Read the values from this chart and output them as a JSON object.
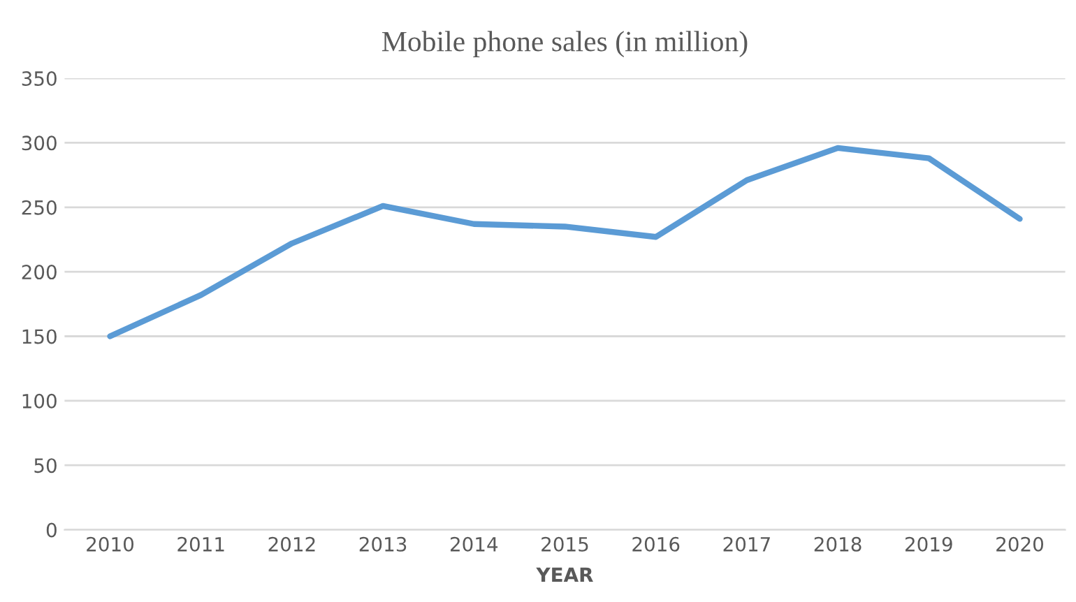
{
  "chart_data": {
    "type": "line",
    "title": "Mobile phone sales (in million)",
    "xlabel": "YEAR",
    "categories": [
      "2010",
      "2011",
      "2012",
      "2013",
      "2014",
      "2015",
      "2016",
      "2017",
      "2018",
      "2019",
      "2020"
    ],
    "series": [
      {
        "color": "#5b9bd5",
        "values": [
          150,
          182,
          222,
          251,
          237,
          235,
          227,
          271,
          296,
          288,
          241
        ]
      }
    ],
    "ylim": [
      0,
      350
    ],
    "yticks": [
      0,
      50,
      100,
      150,
      200,
      250,
      300,
      350
    ],
    "grid": "y",
    "marker": "none",
    "line_style": "solid"
  }
}
